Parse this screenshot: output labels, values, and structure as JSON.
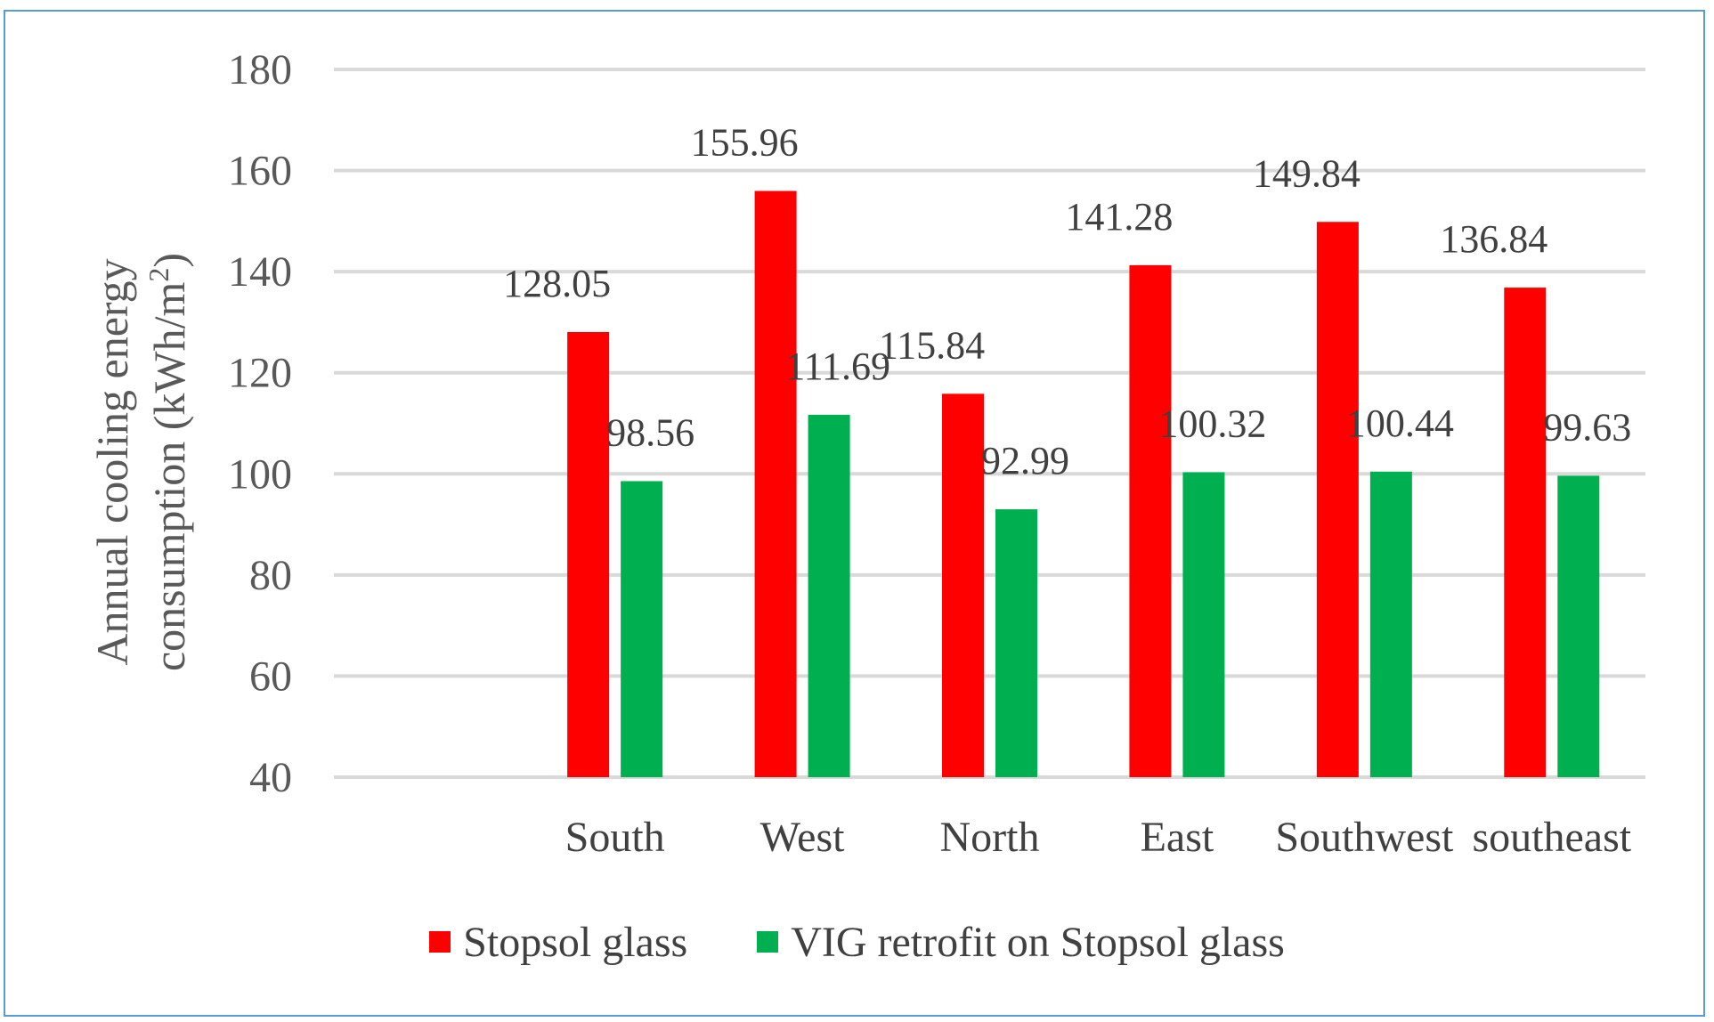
{
  "chart_data": {
    "type": "bar",
    "title": "",
    "xlabel": "",
    "ylabel": "Annual cooling energy consumption (kWh/m²)",
    "ylabel_lines": [
      "Annual cooling energy",
      "consumption (kWh/m",
      "2",
      ")"
    ],
    "ylim": [
      40,
      180
    ],
    "yticks": [
      40,
      60,
      80,
      100,
      120,
      140,
      160,
      180
    ],
    "grid": true,
    "legend_position": "bottom",
    "categories": [
      "",
      "South",
      "West",
      "North",
      "East",
      "Southwest",
      "southeast"
    ],
    "series": [
      {
        "name": "Stopsol glass",
        "color": "#ff0000",
        "values": [
          null,
          128.05,
          155.96,
          115.84,
          141.28,
          149.84,
          136.84
        ]
      },
      {
        "name": "VIG retrofit on Stopsol glass",
        "color": "#00b050",
        "values": [
          null,
          98.56,
          111.69,
          92.99,
          100.32,
          100.44,
          99.63
        ]
      }
    ],
    "data_labels": [
      [
        "",
        "128.05",
        "155.96",
        "115.84",
        "141.28",
        "149.84",
        "136.84"
      ],
      [
        "",
        "98.56",
        "111.69",
        "92.99",
        "100.32",
        "100.44",
        "99.63"
      ]
    ]
  },
  "legend": {
    "items": [
      {
        "label": "Stopsol glass",
        "color": "#ff0000"
      },
      {
        "label": "VIG retrofit on Stopsol glass",
        "color": "#00b050"
      }
    ]
  }
}
